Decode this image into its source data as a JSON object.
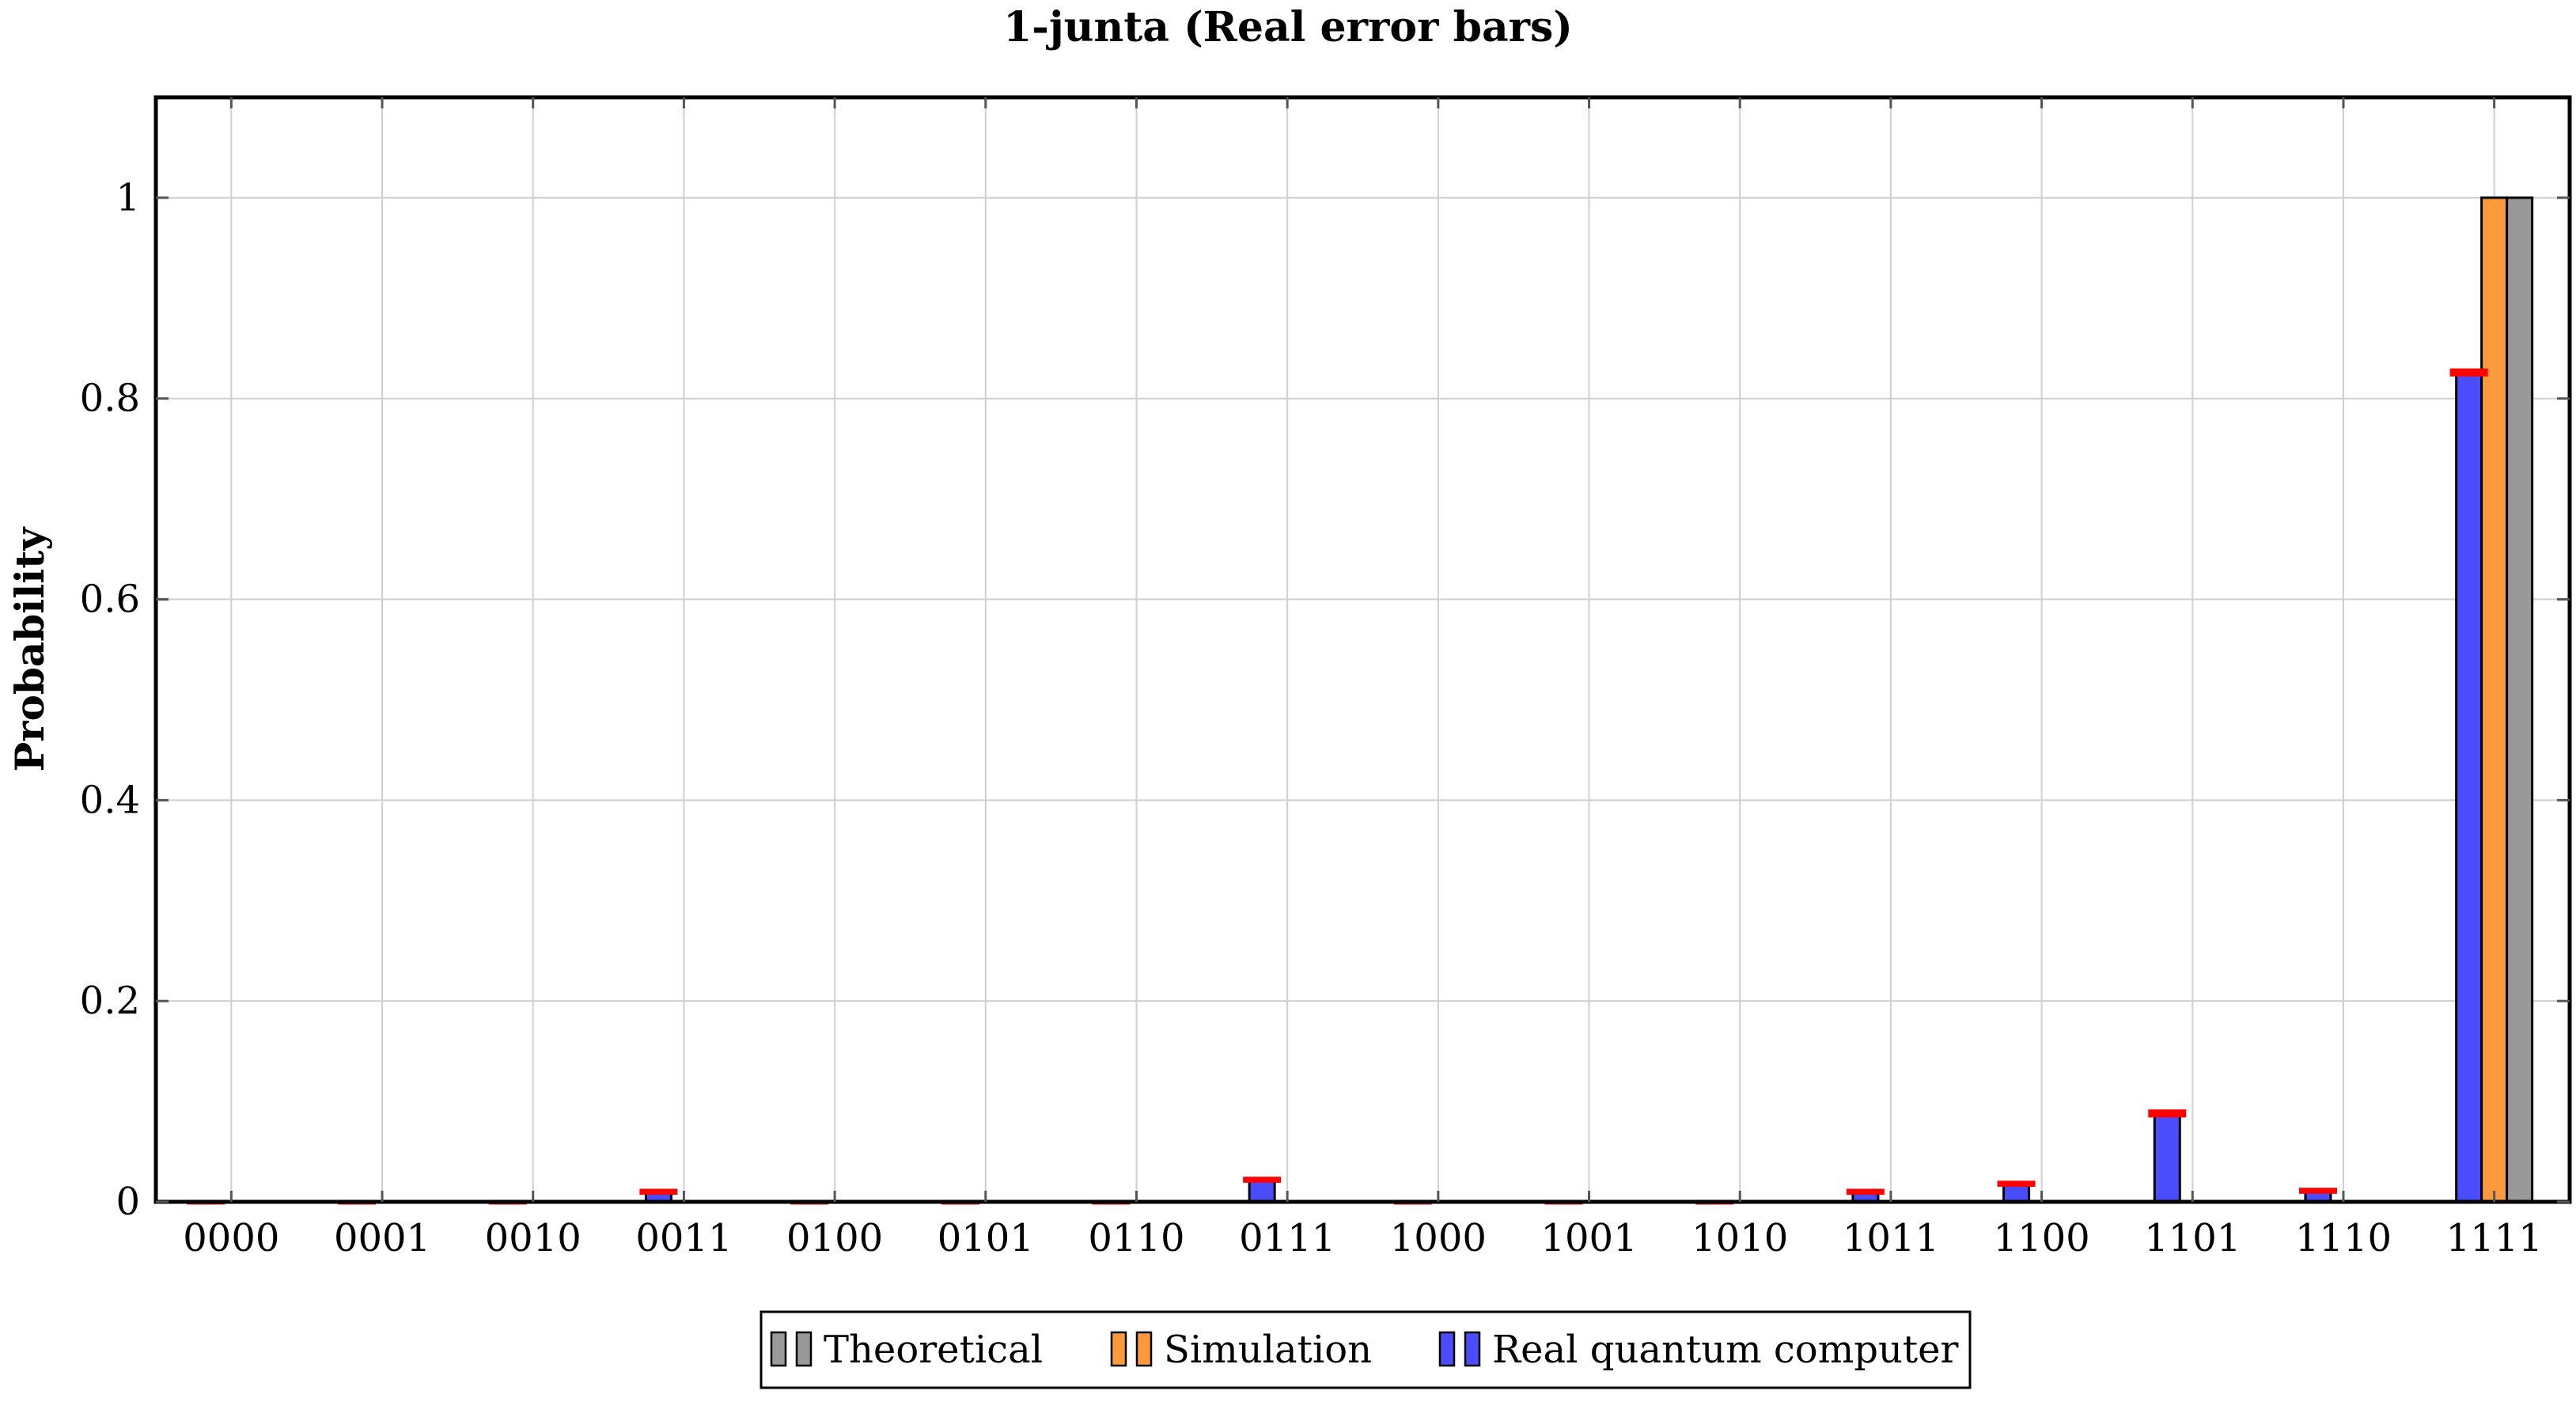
{
  "chart_data": {
    "type": "bar",
    "title": "1-junta (Real error bars)",
    "xlabel": "",
    "ylabel": "Probability",
    "ylim": [
      0,
      1.1
    ],
    "yticks": [
      0,
      0.2,
      0.4,
      0.6,
      0.8,
      1
    ],
    "ytick_labels": [
      "0",
      "0.2",
      "0.4",
      "0.6",
      "0.8",
      "1"
    ],
    "grid": true,
    "legend_position": "bottom-center",
    "categories": [
      "0000",
      "0001",
      "0010",
      "0011",
      "0100",
      "0101",
      "0110",
      "0111",
      "1000",
      "1001",
      "1010",
      "1011",
      "1100",
      "1101",
      "1110",
      "1111"
    ],
    "series": [
      {
        "name": "Real quantum computer",
        "color": "#4c4cff",
        "values": [
          0,
          0,
          0,
          0.01,
          0,
          0,
          0,
          0.022,
          0,
          0,
          0,
          0.01,
          0.018,
          0.088,
          0.011,
          0.826
        ],
        "error": [
          0.002,
          0.002,
          0.002,
          0.003,
          0.002,
          0.002,
          0.002,
          0.003,
          0.002,
          0.002,
          0.002,
          0.003,
          0.003,
          0.004,
          0.003,
          0.004
        ]
      },
      {
        "name": "Simulation",
        "color": "#ff9a3c",
        "values": [
          0,
          0,
          0,
          0,
          0,
          0,
          0,
          0,
          0,
          0,
          0,
          0,
          0,
          0,
          0,
          1
        ]
      },
      {
        "name": "Theoretical",
        "color": "#999999",
        "values": [
          0,
          0,
          0,
          0,
          0,
          0,
          0,
          0,
          0,
          0,
          0,
          0,
          0,
          0,
          0,
          1
        ]
      }
    ],
    "legend_order": [
      "Theoretical",
      "Simulation",
      "Real quantum computer"
    ],
    "error_bar_color": "#ff0000"
  }
}
